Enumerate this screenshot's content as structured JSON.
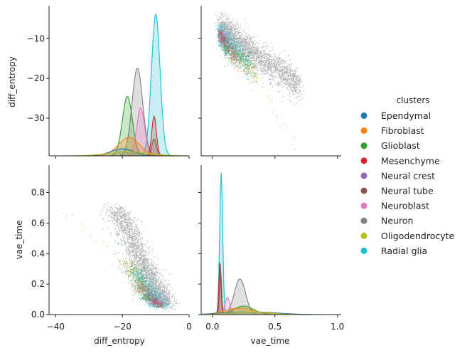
{
  "chart_data": {
    "type": "scatter",
    "subtype": "pairplot",
    "variables": [
      "diff_entropy",
      "vae_time"
    ],
    "legend": {
      "title": "clusters",
      "placement": "right",
      "items": [
        {
          "name": "Ependymal",
          "color": "#1f77b4"
        },
        {
          "name": "Fibroblast",
          "color": "#ff7f0e"
        },
        {
          "name": "Glioblast",
          "color": "#2ca02c"
        },
        {
          "name": "Mesenchyme",
          "color": "#d62728"
        },
        {
          "name": "Neural crest",
          "color": "#9467bd"
        },
        {
          "name": "Neural tube",
          "color": "#8c564b"
        },
        {
          "name": "Neuroblast",
          "color": "#e377c2"
        },
        {
          "name": "Neuron",
          "color": "#7f7f7f"
        },
        {
          "name": "Oligodendrocyte",
          "color": "#bcbd22"
        },
        {
          "name": "Radial glia",
          "color": "#17becf"
        }
      ]
    },
    "axes": {
      "diff_entropy": {
        "label": "diff_entropy",
        "range": [
          -42,
          0
        ],
        "ticks": [
          -40,
          -20,
          0
        ],
        "tick_labels": [
          "−40",
          "−20",
          "0"
        ]
      },
      "diff_entropy_y": {
        "label": "diff_entropy",
        "range": [
          -39.5,
          -1.7
        ],
        "ticks": [
          -10,
          -20,
          -30
        ],
        "tick_labels": [
          "−10",
          "−20",
          "−30"
        ]
      },
      "vae_time": {
        "label": "vae_time",
        "range": [
          -0.09,
          1.03
        ],
        "ticks": [
          0.0,
          0.5,
          1.0
        ],
        "tick_labels": [
          "0.0",
          "0.5",
          "1.0"
        ]
      },
      "vae_time_y": {
        "label": "vae_time",
        "range": [
          0.0,
          0.98
        ],
        "ticks": [
          0.0,
          0.2,
          0.4,
          0.6,
          0.8
        ],
        "tick_labels": [
          "0.0",
          "0.2",
          "0.4",
          "0.6",
          "0.8"
        ]
      }
    },
    "kde_diff_entropy": [
      {
        "name": "Radial glia",
        "mode": -10,
        "sd": 1.3,
        "peak": 1.0
      },
      {
        "name": "Neuron",
        "mode": -15.5,
        "sd": 1.6,
        "peak": 0.62
      },
      {
        "name": "Glioblast",
        "mode": -18.5,
        "sd": 1.5,
        "peak": 0.42
      },
      {
        "name": "Neuroblast",
        "mode": -14.5,
        "sd": 1.2,
        "peak": 0.34
      },
      {
        "name": "Mesenchyme",
        "mode": -10.5,
        "sd": 0.7,
        "peak": 0.28
      },
      {
        "name": "Neural tube",
        "mode": -10.5,
        "sd": 0.7,
        "peak": 0.12
      },
      {
        "name": "Fibroblast",
        "mode": -18.0,
        "sd": 3.2,
        "peak": 0.13
      },
      {
        "name": "Ependymal",
        "mode": -20.0,
        "sd": 3.5,
        "peak": 0.05
      },
      {
        "name": "Oligodendrocyte",
        "mode": -18.0,
        "sd": 6.0,
        "peak": 0.03
      }
    ],
    "kde_vae_time": [
      {
        "name": "Radial glia",
        "mode": 0.07,
        "sd": 0.012,
        "peak": 1.0
      },
      {
        "name": "Mesenchyme",
        "mode": 0.06,
        "sd": 0.008,
        "peak": 0.39
      },
      {
        "name": "Neural tube",
        "mode": 0.065,
        "sd": 0.008,
        "peak": 0.33
      },
      {
        "name": "Neuron",
        "mode": 0.22,
        "sd": 0.045,
        "peak": 0.25
      },
      {
        "name": "Neuroblast",
        "mode": 0.12,
        "sd": 0.02,
        "peak": 0.12
      },
      {
        "name": "Glioblast",
        "mode": 0.25,
        "sd": 0.08,
        "peak": 0.06
      },
      {
        "name": "Fibroblast",
        "mode": 0.22,
        "sd": 0.12,
        "peak": 0.045
      },
      {
        "name": "Ependymal",
        "mode": 0.3,
        "sd": 0.2,
        "peak": 0.02
      },
      {
        "name": "Oligodendrocyte",
        "mode": 0.3,
        "sd": 0.15,
        "peak": 0.02
      }
    ],
    "scatter_trends": [
      {
        "name": "Neuron",
        "time_range": [
          0.08,
          0.7
        ],
        "entropy_at_low_time": -8,
        "entropy_slope": -22,
        "time_spread": 0.04,
        "entropy_spread": 1.8,
        "count": 2600
      },
      {
        "name": "Radial glia",
        "time_range": [
          0.05,
          0.3
        ],
        "entropy_at_low_time": -9,
        "entropy_slope": -30,
        "time_spread": 0.02,
        "entropy_spread": 1.5,
        "count": 700
      },
      {
        "name": "Neuroblast",
        "time_range": [
          0.08,
          0.2
        ],
        "entropy_at_low_time": -10,
        "entropy_slope": -40,
        "time_spread": 0.015,
        "entropy_spread": 1.0,
        "count": 400
      },
      {
        "name": "Glioblast",
        "time_range": [
          0.1,
          0.35
        ],
        "entropy_at_low_time": -12,
        "entropy_slope": -25,
        "time_spread": 0.025,
        "entropy_spread": 1.3,
        "count": 400
      },
      {
        "name": "Fibroblast",
        "time_range": [
          0.15,
          0.35
        ],
        "entropy_at_low_time": -14,
        "entropy_slope": -25,
        "time_spread": 0.03,
        "entropy_spread": 1.8,
        "count": 140
      },
      {
        "name": "Ependymal",
        "time_range": [
          0.1,
          0.65
        ],
        "entropy_at_low_time": -11,
        "entropy_slope": -22,
        "time_spread": 0.04,
        "entropy_spread": 2.5,
        "count": 120
      },
      {
        "name": "Mesenchyme",
        "time_range": [
          0.05,
          0.1
        ],
        "entropy_at_low_time": -9,
        "entropy_slope": -30,
        "time_spread": 0.01,
        "entropy_spread": 0.9,
        "count": 60
      },
      {
        "name": "Neural tube",
        "time_range": [
          0.05,
          0.1
        ],
        "entropy_at_low_time": -9,
        "entropy_slope": -30,
        "time_spread": 0.01,
        "entropy_spread": 0.9,
        "count": 50
      },
      {
        "name": "Neural crest",
        "time_range": [
          0.08,
          0.2
        ],
        "entropy_at_low_time": -11,
        "entropy_slope": -35,
        "time_spread": 0.02,
        "entropy_spread": 1.2,
        "count": 40
      },
      {
        "name": "Oligodendrocyte",
        "time_range": [
          0.3,
          0.65
        ],
        "entropy_at_low_time": -17,
        "entropy_slope": -55,
        "time_spread": 0.02,
        "entropy_spread": 1.0,
        "count": 45
      }
    ]
  }
}
